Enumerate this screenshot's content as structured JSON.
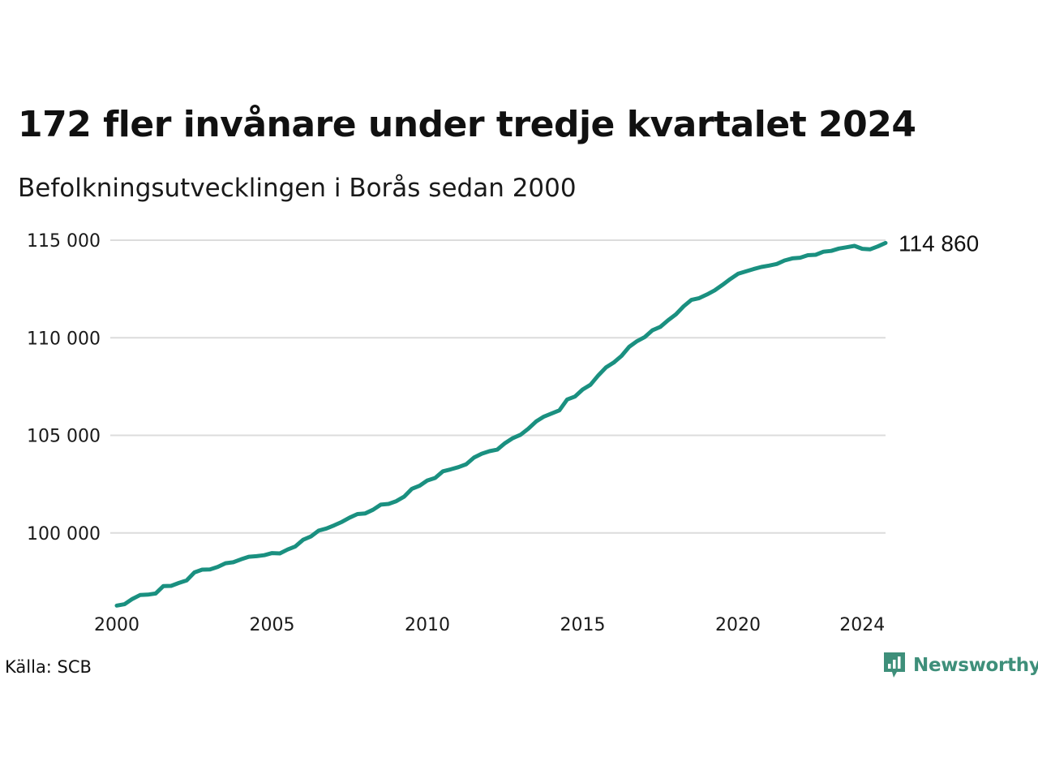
{
  "chart_data": {
    "type": "line",
    "title": "172 fler invånare under tredje kvartalet 2024",
    "subtitle": "Befolkningsutvecklingen i Borås sedan 2000",
    "xlabel": "",
    "ylabel": "",
    "xlim": [
      2000,
      2024.75
    ],
    "ylim": [
      96000,
      115000
    ],
    "x_ticks": [
      "2000",
      "2005",
      "2010",
      "2015",
      "2020",
      "2024"
    ],
    "x_tick_values": [
      2000,
      2005,
      2010,
      2015,
      2020,
      2024
    ],
    "y_ticks": [
      "100 000",
      "105 000",
      "110 000",
      "115 000"
    ],
    "y_tick_values": [
      100000,
      105000,
      110000,
      115000
    ],
    "grid": "horizontal",
    "line_color": "#1a9080",
    "end_label": "114 860",
    "series": [
      {
        "x": [
          2000.0,
          2000.25,
          2000.5,
          2000.75,
          2001.0,
          2001.25,
          2001.5,
          2001.75,
          2002.0,
          2002.25,
          2002.5,
          2002.75,
          2003.0,
          2003.25,
          2003.5,
          2003.75,
          2004.0,
          2004.25,
          2004.5,
          2004.75,
          2005.0,
          2005.25,
          2005.5,
          2005.75,
          2006.0,
          2006.25,
          2006.5,
          2006.75,
          2007.0,
          2007.25,
          2007.5,
          2007.75,
          2008.0,
          2008.25,
          2008.5,
          2008.75,
          2009.0,
          2009.25,
          2009.5,
          2009.75,
          2010.0,
          2010.25,
          2010.5,
          2010.75,
          2011.0,
          2011.25,
          2011.5,
          2011.75,
          2012.0,
          2012.25,
          2012.5,
          2012.75,
          2013.0,
          2013.25,
          2013.5,
          2013.75,
          2014.0,
          2014.25,
          2014.5,
          2014.75,
          2015.0,
          2015.25,
          2015.5,
          2015.75,
          2016.0,
          2016.25,
          2016.5,
          2016.75,
          2017.0,
          2017.25,
          2017.5,
          2017.75,
          2018.0,
          2018.25,
          2018.5,
          2018.75,
          2019.0,
          2019.25,
          2019.5,
          2019.75,
          2020.0,
          2020.25,
          2020.5,
          2020.75,
          2021.0,
          2021.25,
          2021.5,
          2021.75,
          2022.0,
          2022.25,
          2022.5,
          2022.75,
          2023.0,
          2023.25,
          2023.5,
          2023.75,
          2024.0,
          2024.25,
          2024.5,
          2024.75
        ],
        "y": [
          96280,
          96350,
          96620,
          96820,
          96840,
          96900,
          97280,
          97290,
          97440,
          97570,
          97980,
          98120,
          98130,
          98260,
          98450,
          98500,
          98650,
          98780,
          98810,
          98860,
          98970,
          98950,
          99150,
          99310,
          99650,
          99820,
          100120,
          100230,
          100390,
          100570,
          100790,
          100970,
          101000,
          101190,
          101450,
          101490,
          101630,
          101860,
          102260,
          102420,
          102690,
          102820,
          103160,
          103260,
          103370,
          103520,
          103860,
          104060,
          104190,
          104270,
          104600,
          104860,
          105030,
          105340,
          105710,
          105960,
          106120,
          106280,
          106840,
          106990,
          107350,
          107590,
          108070,
          108480,
          108730,
          109070,
          109540,
          109830,
          110040,
          110390,
          110560,
          110900,
          111200,
          111610,
          111940,
          112030,
          112220,
          112430,
          112710,
          113010,
          113280,
          113400,
          113520,
          113630,
          113700,
          113780,
          113960,
          114070,
          114100,
          114230,
          114250,
          114410,
          114450,
          114570,
          114640,
          114710,
          114560,
          114530,
          114680,
          114860
        ]
      }
    ]
  },
  "footer": {
    "source": "Källa: SCB",
    "brand": "Newsworthy",
    "brand_color": "#3e8f7a",
    "brand_icon": "bar-chart-speech-bubble-icon"
  }
}
